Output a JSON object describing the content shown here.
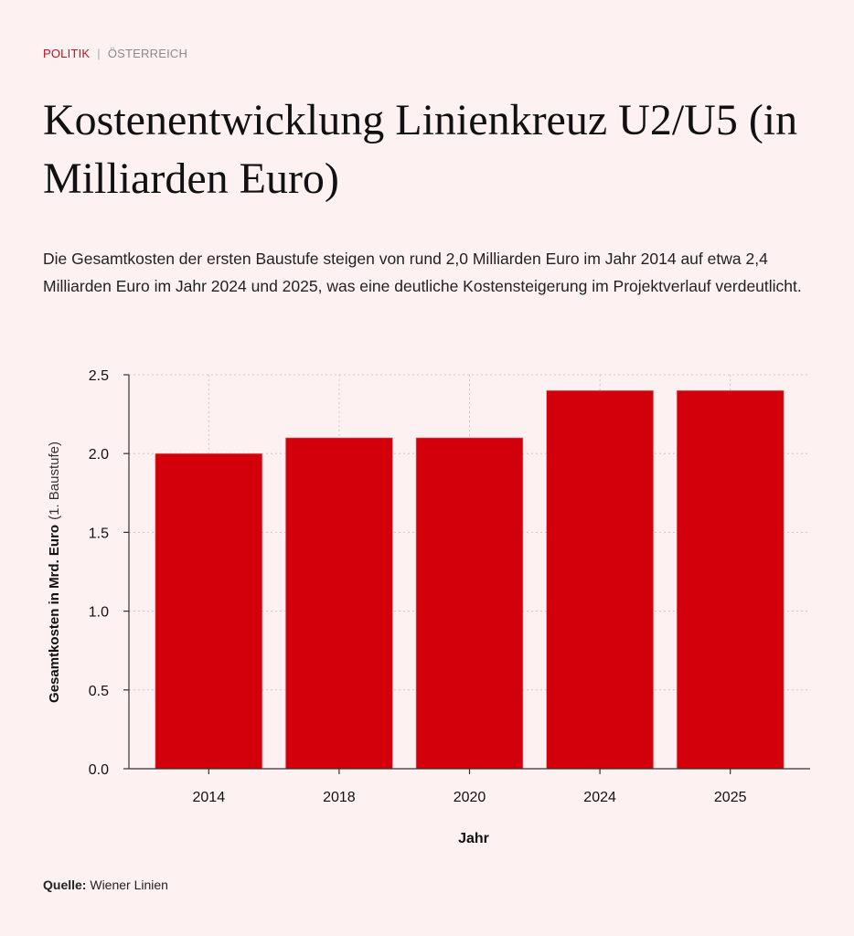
{
  "kicker": {
    "category": "POLITIK",
    "separator": "|",
    "subcategory": "ÖSTERREICH"
  },
  "title": "Kostenentwicklung Linienkreuz U2/U5 (in Milliarden Euro)",
  "description": "Die Gesamtkosten der ersten Baustufe steigen von rund 2,0 Milliarden Euro im Jahr 2014 auf etwa 2,4 Milliarden Euro im Jahr 2024 und 2025, was eine deutliche Kostensteigerung im Projektverlauf verdeutlicht.",
  "source": {
    "label": "Quelle:",
    "text": "Wiener Linien"
  },
  "colors": {
    "bar": "#d3000b",
    "accent": "#c0121c",
    "background": "#fdf1f1"
  },
  "chart_data": {
    "type": "bar",
    "categories": [
      "2014",
      "2018",
      "2020",
      "2024",
      "2025"
    ],
    "values": [
      2.0,
      2.1,
      2.1,
      2.4,
      2.4
    ],
    "xlabel": "Jahr",
    "ylabel_bold": "Gesamtkosten in Mrd. Euro",
    "ylabel_light": "(1. Baustufe)",
    "ylim": [
      0,
      2.5
    ],
    "yticks": [
      "0.0",
      "0.5",
      "1.0",
      "1.5",
      "2.0",
      "2.5"
    ],
    "ytick_values": [
      0,
      0.5,
      1.0,
      1.5,
      2.0,
      2.5
    ],
    "grid": true,
    "legend": "none"
  }
}
